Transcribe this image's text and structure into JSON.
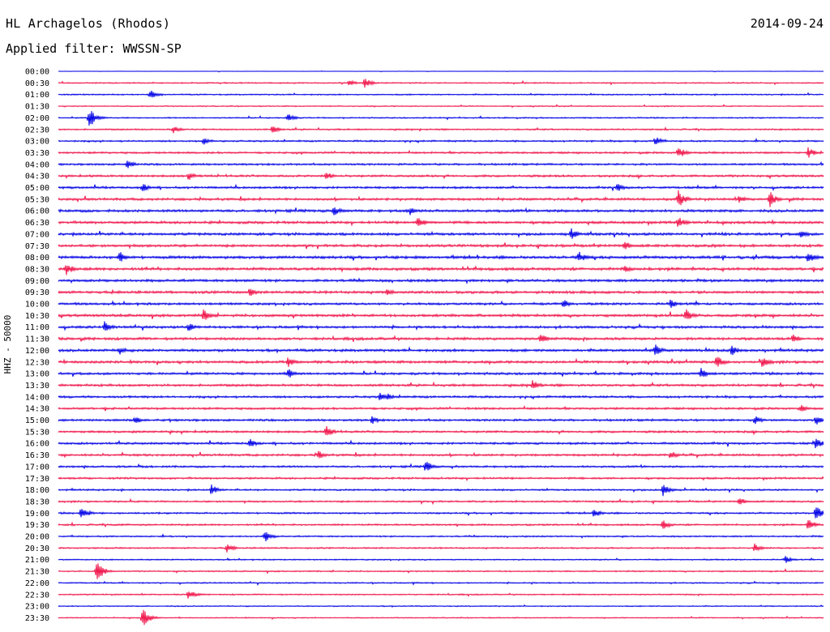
{
  "header": {
    "station": "HL Archagelos (Rhodos)",
    "date": "2014-09-24",
    "filter_text": "Applied filter: WWSSN-SP"
  },
  "colors": {
    "trace_a": "#0000e6",
    "trace_b": "#f0144a",
    "background": "#ffffff",
    "text": "#000000"
  },
  "chart_data": {
    "type": "line",
    "title": "HL Archagelos (Rhodos)",
    "subtitle": "Applied filter: WWSSN-SP",
    "ylabel": "HHZ - 50000",
    "xlabel": "",
    "grid": false,
    "legend": "none",
    "row_labels": [
      "00:00",
      "00:30",
      "01:00",
      "01:30",
      "02:00",
      "02:30",
      "03:00",
      "03:30",
      "04:00",
      "04:30",
      "05:00",
      "05:30",
      "06:00",
      "06:30",
      "07:00",
      "07:30",
      "08:00",
      "08:30",
      "09:00",
      "09:30",
      "10:00",
      "10:30",
      "11:00",
      "11:30",
      "12:00",
      "12:30",
      "13:00",
      "13:30",
      "14:00",
      "14:30",
      "15:00",
      "15:30",
      "16:00",
      "16:30",
      "17:00",
      "17:30",
      "18:00",
      "18:30",
      "19:00",
      "19:30",
      "20:00",
      "20:30",
      "21:00",
      "21:30",
      "22:00",
      "22:30",
      "23:00",
      "23:30"
    ],
    "row_colors": [
      "#0000e6",
      "#f0144a"
    ],
    "noise_level": [
      0.2,
      0.6,
      0.6,
      0.5,
      0.6,
      0.7,
      0.8,
      0.9,
      0.9,
      1.0,
      1.0,
      1.1,
      1.2,
      1.2,
      1.2,
      1.2,
      1.3,
      1.3,
      1.2,
      1.2,
      1.1,
      1.2,
      1.1,
      1.2,
      1.2,
      1.2,
      1.1,
      1.1,
      1.0,
      1.0,
      1.0,
      1.0,
      1.0,
      1.0,
      0.9,
      0.9,
      0.8,
      0.8,
      0.8,
      0.8,
      0.7,
      0.7,
      0.6,
      0.6,
      0.6,
      0.6,
      0.5,
      0.5
    ],
    "events": [
      {
        "row": 1,
        "t": 0.38,
        "amp": 4
      },
      {
        "row": 1,
        "t": 0.4,
        "amp": 7
      },
      {
        "row": 2,
        "t": 0.12,
        "amp": 6
      },
      {
        "row": 4,
        "t": 0.04,
        "amp": 14
      },
      {
        "row": 4,
        "t": 0.3,
        "amp": 6
      },
      {
        "row": 5,
        "t": 0.15,
        "amp": 5
      },
      {
        "row": 5,
        "t": 0.28,
        "amp": 6
      },
      {
        "row": 6,
        "t": 0.19,
        "amp": 5
      },
      {
        "row": 6,
        "t": 0.78,
        "amp": 6
      },
      {
        "row": 7,
        "t": 0.81,
        "amp": 9
      },
      {
        "row": 7,
        "t": 0.98,
        "amp": 7
      },
      {
        "row": 8,
        "t": 0.09,
        "amp": 6
      },
      {
        "row": 9,
        "t": 0.17,
        "amp": 6
      },
      {
        "row": 9,
        "t": 0.35,
        "amp": 6
      },
      {
        "row": 10,
        "t": 0.11,
        "amp": 6
      },
      {
        "row": 10,
        "t": 0.73,
        "amp": 6
      },
      {
        "row": 11,
        "t": 0.81,
        "amp": 12
      },
      {
        "row": 11,
        "t": 0.93,
        "amp": 10
      },
      {
        "row": 11,
        "t": 0.89,
        "amp": 6
      },
      {
        "row": 12,
        "t": 0.36,
        "amp": 7
      },
      {
        "row": 12,
        "t": 0.46,
        "amp": 6
      },
      {
        "row": 13,
        "t": 0.47,
        "amp": 9
      },
      {
        "row": 13,
        "t": 0.81,
        "amp": 8
      },
      {
        "row": 14,
        "t": 0.67,
        "amp": 8
      },
      {
        "row": 14,
        "t": 0.97,
        "amp": 7
      },
      {
        "row": 15,
        "t": 0.74,
        "amp": 7
      },
      {
        "row": 16,
        "t": 0.08,
        "amp": 8
      },
      {
        "row": 16,
        "t": 0.68,
        "amp": 8
      },
      {
        "row": 16,
        "t": 0.98,
        "amp": 9
      },
      {
        "row": 17,
        "t": 0.01,
        "amp": 9
      },
      {
        "row": 17,
        "t": 0.74,
        "amp": 6
      },
      {
        "row": 19,
        "t": 0.25,
        "amp": 6
      },
      {
        "row": 19,
        "t": 0.43,
        "amp": 5
      },
      {
        "row": 20,
        "t": 0.66,
        "amp": 6
      },
      {
        "row": 20,
        "t": 0.8,
        "amp": 6
      },
      {
        "row": 21,
        "t": 0.19,
        "amp": 9
      },
      {
        "row": 21,
        "t": 0.82,
        "amp": 9
      },
      {
        "row": 22,
        "t": 0.06,
        "amp": 8
      },
      {
        "row": 22,
        "t": 0.17,
        "amp": 6
      },
      {
        "row": 23,
        "t": 0.63,
        "amp": 8
      },
      {
        "row": 23,
        "t": 0.96,
        "amp": 7
      },
      {
        "row": 24,
        "t": 0.08,
        "amp": 6
      },
      {
        "row": 24,
        "t": 0.78,
        "amp": 8
      },
      {
        "row": 24,
        "t": 0.88,
        "amp": 7
      },
      {
        "row": 25,
        "t": 0.3,
        "amp": 7
      },
      {
        "row": 25,
        "t": 0.86,
        "amp": 9
      },
      {
        "row": 25,
        "t": 0.92,
        "amp": 8
      },
      {
        "row": 26,
        "t": 0.3,
        "amp": 7
      },
      {
        "row": 26,
        "t": 0.84,
        "amp": 7
      },
      {
        "row": 27,
        "t": 0.62,
        "amp": 7
      },
      {
        "row": 28,
        "t": 0.42,
        "amp": 6
      },
      {
        "row": 28,
        "t": 0.43,
        "amp": 5
      },
      {
        "row": 29,
        "t": 0.97,
        "amp": 6
      },
      {
        "row": 30,
        "t": 0.1,
        "amp": 6
      },
      {
        "row": 30,
        "t": 0.41,
        "amp": 6
      },
      {
        "row": 30,
        "t": 0.91,
        "amp": 6
      },
      {
        "row": 30,
        "t": 0.99,
        "amp": 7
      },
      {
        "row": 31,
        "t": 0.35,
        "amp": 8
      },
      {
        "row": 32,
        "t": 0.25,
        "amp": 6
      },
      {
        "row": 32,
        "t": 0.99,
        "amp": 8
      },
      {
        "row": 33,
        "t": 0.34,
        "amp": 6
      },
      {
        "row": 33,
        "t": 0.8,
        "amp": 6
      },
      {
        "row": 34,
        "t": 0.48,
        "amp": 8
      },
      {
        "row": 36,
        "t": 0.2,
        "amp": 7
      },
      {
        "row": 36,
        "t": 0.79,
        "amp": 8
      },
      {
        "row": 37,
        "t": 0.89,
        "amp": 6
      },
      {
        "row": 38,
        "t": 0.03,
        "amp": 9
      },
      {
        "row": 38,
        "t": 0.7,
        "amp": 6
      },
      {
        "row": 38,
        "t": 0.99,
        "amp": 10
      },
      {
        "row": 39,
        "t": 0.79,
        "amp": 7
      },
      {
        "row": 39,
        "t": 0.98,
        "amp": 8
      },
      {
        "row": 40,
        "t": 0.27,
        "amp": 7
      },
      {
        "row": 41,
        "t": 0.22,
        "amp": 6
      },
      {
        "row": 41,
        "t": 0.91,
        "amp": 6
      },
      {
        "row": 42,
        "t": 0.95,
        "amp": 5
      },
      {
        "row": 43,
        "t": 0.05,
        "amp": 14
      },
      {
        "row": 45,
        "t": 0.17,
        "amp": 7
      },
      {
        "row": 47,
        "t": 0.11,
        "amp": 13
      }
    ]
  }
}
